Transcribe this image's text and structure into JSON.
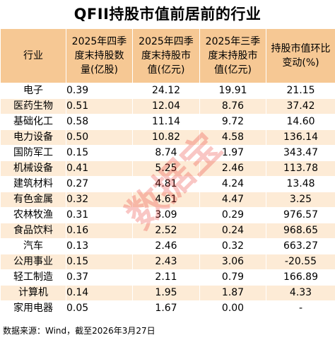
{
  "title": "QFII持股市值前居前的行业",
  "headers": {
    "industry": "行业",
    "q4_shares": [
      "2025年四季",
      "度末持股数",
      "量(亿股)"
    ],
    "q4_value": [
      "2025年四季",
      "度末持股市",
      "值(亿元)"
    ],
    "q3_value": [
      "2025年三季",
      "度末持股市",
      "值(亿元)"
    ],
    "change": [
      "持股市值环比",
      "变动(%)"
    ]
  },
  "rows": [
    {
      "industry": "电子",
      "q4_shares": "0.39",
      "q4_value": "24.12",
      "q3_value": "19.91",
      "change": "21.15"
    },
    {
      "industry": "医药生物",
      "q4_shares": "0.51",
      "q4_value": "12.04",
      "q3_value": "8.76",
      "change": "37.42"
    },
    {
      "industry": "基础化工",
      "q4_shares": "0.58",
      "q4_value": "11.14",
      "q3_value": "9.72",
      "change": "14.60"
    },
    {
      "industry": "电力设备",
      "q4_shares": "0.50",
      "q4_value": "10.82",
      "q3_value": "4.58",
      "change": "136.14"
    },
    {
      "industry": "国防军工",
      "q4_shares": "0.15",
      "q4_value": "8.74",
      "q3_value": "1.97",
      "change": "343.47"
    },
    {
      "industry": "机械设备",
      "q4_shares": "0.41",
      "q4_value": "5.25",
      "q3_value": "2.46",
      "change": "113.78"
    },
    {
      "industry": "建筑材料",
      "q4_shares": "0.27",
      "q4_value": "4.81",
      "q3_value": "4.24",
      "change": "13.48"
    },
    {
      "industry": "有色金属",
      "q4_shares": "0.32",
      "q4_value": "4.61",
      "q3_value": "4.47",
      "change": "3.25"
    },
    {
      "industry": "农林牧渔",
      "q4_shares": "0.31",
      "q4_value": "3.09",
      "q3_value": "0.29",
      "change": "976.57"
    },
    {
      "industry": "食品饮料",
      "q4_shares": "0.16",
      "q4_value": "2.52",
      "q3_value": "0.24",
      "change": "968.65"
    },
    {
      "industry": "汽车",
      "q4_shares": "0.13",
      "q4_value": "2.46",
      "q3_value": "0.32",
      "change": "663.27"
    },
    {
      "industry": "公用事业",
      "q4_shares": "0.15",
      "q4_value": "2.43",
      "q3_value": "3.06",
      "change": "-20.55"
    },
    {
      "industry": "轻工制造",
      "q4_shares": "0.37",
      "q4_value": "2.11",
      "q3_value": "0.79",
      "change": "166.89"
    },
    {
      "industry": "计算机",
      "q4_shares": "0.14",
      "q4_value": "1.95",
      "q3_value": "1.87",
      "change": "4.33"
    },
    {
      "industry": "家用电器",
      "q4_shares": "0.05",
      "q4_value": "1.67",
      "q3_value": "0.00",
      "change": "-"
    }
  ],
  "footer": "数据来源：Wind，截至2026年3月27日",
  "watermark": "数据宝",
  "colors": {
    "header_bg": "#f6c894",
    "stripe_bg": "#fdebd6",
    "watermark": "#e8342a"
  }
}
